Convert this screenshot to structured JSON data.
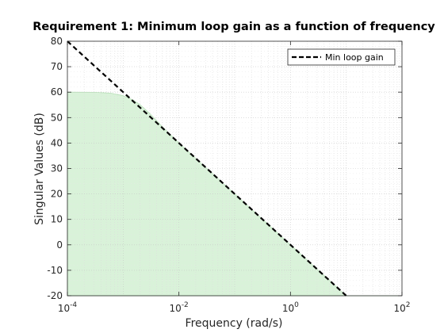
{
  "chart_data": {
    "type": "line",
    "title": "Requirement 1: Minimum loop gain as a function of frequency",
    "xlabel": "Frequency (rad/s)",
    "ylabel": "Singular Values (dB)",
    "xscale": "log",
    "xlim": [
      0.0001,
      100
    ],
    "ylim": [
      -20,
      80
    ],
    "x_ticks": [
      {
        "value": 0.0001,
        "base": "10",
        "exp": "-4"
      },
      {
        "value": 0.01,
        "base": "10",
        "exp": "-2"
      },
      {
        "value": 1,
        "base": "10",
        "exp": "0"
      },
      {
        "value": 100,
        "base": "10",
        "exp": "2"
      }
    ],
    "y_ticks": [
      -20,
      -10,
      0,
      10,
      20,
      30,
      40,
      50,
      60,
      70,
      80
    ],
    "grid": "major and minor, dotted",
    "legend": {
      "position": "top-right",
      "entries": [
        "Min loop gain"
      ]
    },
    "series": [
      {
        "name": "Min loop gain",
        "style": "dashed",
        "color": "#000000",
        "x": [
          0.0001,
          10
        ],
        "y": [
          80,
          -20
        ]
      }
    ],
    "shaded_region": {
      "fill": "#d9f2d9",
      "edge": "#b7e0b7",
      "description_points": {
        "x": [
          0.0001,
          0.0003,
          0.0006,
          0.001,
          0.0015,
          0.002,
          0.003,
          0.005,
          0.01,
          0.1,
          1,
          10,
          100
        ],
        "y": [
          60,
          59.95,
          59.6,
          58.6,
          56.9,
          55.1,
          51.6,
          46.5,
          40.0,
          20.0,
          0,
          -20,
          -20
        ]
      }
    }
  }
}
